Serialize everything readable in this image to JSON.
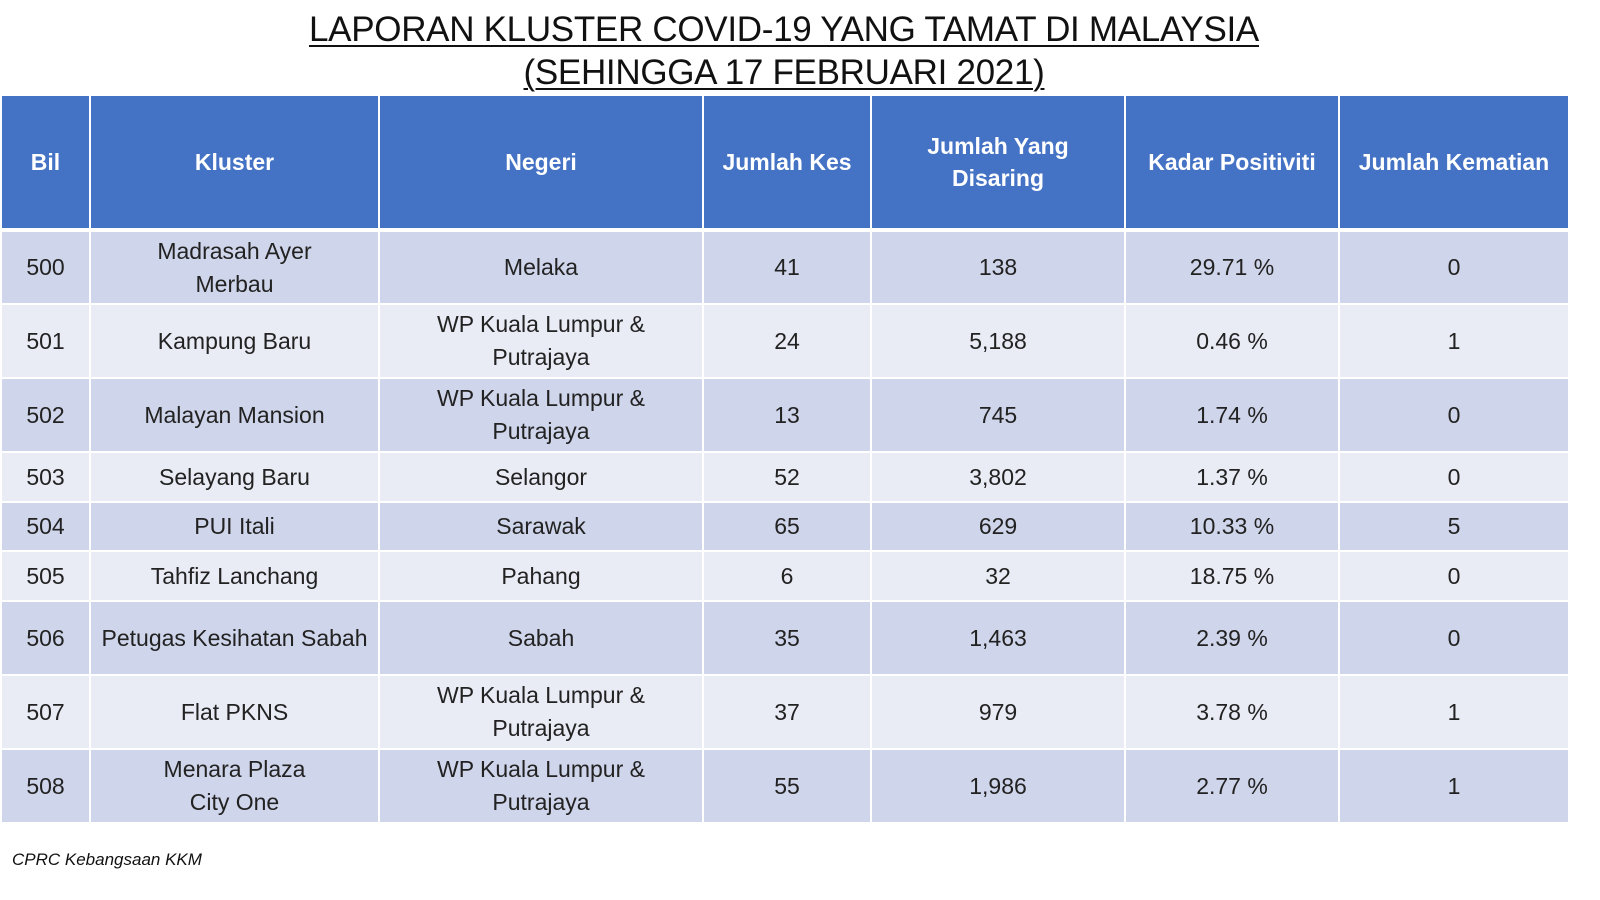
{
  "title": {
    "line1": "LAPORAN KLUSTER COVID-19 YANG TAMAT DI MALAYSIA",
    "line2": "(SEHINGGA 17 FEBRUARI 2021)"
  },
  "headers": {
    "bil": "Bil",
    "kluster": "Kluster",
    "negeri": "Negeri",
    "jumlah_kes": "Jumlah Kes",
    "jumlah_disaring": "Jumlah Yang Disaring",
    "kadar_positiviti": "Kadar Positiviti",
    "jumlah_kematian": "Jumlah Kematian"
  },
  "rows": [
    {
      "bil": "500",
      "kluster": "Madrasah Ayer Merbau",
      "negeri": "Melaka",
      "kes": "41",
      "disaring": "138",
      "positiviti": "29.71 %",
      "kematian": "0"
    },
    {
      "bil": "501",
      "kluster": "Kampung Baru",
      "negeri": "WP Kuala Lumpur & Putrajaya",
      "kes": "24",
      "disaring": "5,188",
      "positiviti": "0.46 %",
      "kematian": "1"
    },
    {
      "bil": "502",
      "kluster": "Malayan Mansion",
      "negeri": "WP Kuala Lumpur & Putrajaya",
      "kes": "13",
      "disaring": "745",
      "positiviti": "1.74 %",
      "kematian": "0"
    },
    {
      "bil": "503",
      "kluster": "Selayang Baru",
      "negeri": "Selangor",
      "kes": "52",
      "disaring": "3,802",
      "positiviti": "1.37 %",
      "kematian": "0"
    },
    {
      "bil": "504",
      "kluster": "PUI Itali",
      "negeri": "Sarawak",
      "kes": "65",
      "disaring": "629",
      "positiviti": "10.33 %",
      "kematian": "5"
    },
    {
      "bil": "505",
      "kluster": "Tahfiz Lanchang",
      "negeri": "Pahang",
      "kes": "6",
      "disaring": "32",
      "positiviti": "18.75 %",
      "kematian": "0"
    },
    {
      "bil": "506",
      "kluster": "Petugas Kesihatan Sabah",
      "negeri": "Sabah",
      "kes": "35",
      "disaring": "1,463",
      "positiviti": "2.39 %",
      "kematian": "0"
    },
    {
      "bil": "507",
      "kluster": "Flat PKNS",
      "negeri": "WP Kuala Lumpur & Putrajaya",
      "kes": "37",
      "disaring": "979",
      "positiviti": "3.78 %",
      "kematian": "1"
    },
    {
      "bil": "508",
      "kluster": "Menara Plaza City One",
      "negeri": "WP Kuala Lumpur & Putrajaya",
      "kes": "55",
      "disaring": "1,986",
      "positiviti": "2.77 %",
      "kematian": "1"
    }
  ],
  "footer": {
    "source": "CPRC Kebangsaan KKM"
  },
  "colors": {
    "header_bg": "#4472c4",
    "row_dark": "#cfd5ea",
    "row_light": "#e9ebf5"
  }
}
